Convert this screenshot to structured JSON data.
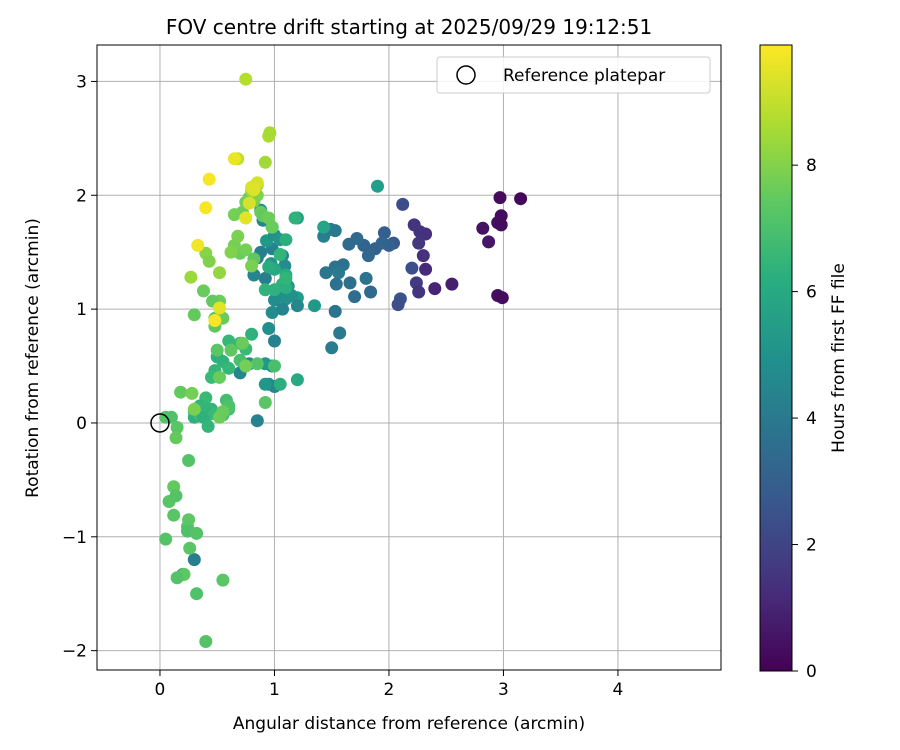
{
  "chart_data": {
    "type": "scatter",
    "title": "FOV centre drift starting at 2025/09/29 19:12:51",
    "xlabel": "Angular distance from reference (arcmin)",
    "ylabel": "Rotation from reference (arcmin)",
    "xlim": [
      -0.55,
      4.9
    ],
    "ylim": [
      -2.17,
      3.32
    ],
    "xticks": [
      0,
      1,
      2,
      3,
      4
    ],
    "yticks": [
      -2,
      -1,
      0,
      1,
      2,
      3
    ],
    "xtick_labels": [
      "0",
      "1",
      "2",
      "3",
      "4"
    ],
    "ytick_labels": [
      "−2",
      "−1",
      "0",
      "1",
      "2",
      "3"
    ],
    "grid": true,
    "legend": {
      "position": "top-right",
      "label": "Reference platepar",
      "marker": "open-circle"
    },
    "reference_point": {
      "x": 0,
      "y": 0
    },
    "colorbar": {
      "label": "Hours from first FF file",
      "colormap": "viridis",
      "range": [
        0,
        9.9
      ],
      "ticks": [
        0,
        2,
        4,
        6,
        8
      ],
      "tick_labels": [
        "0",
        "2",
        "4",
        "6",
        "8"
      ]
    },
    "points": [
      [
        2.97,
        1.98,
        0.3
      ],
      [
        3.15,
        1.97,
        0.2
      ],
      [
        2.98,
        1.82,
        0.3
      ],
      [
        2.95,
        1.76,
        0.4
      ],
      [
        2.98,
        1.74,
        0.3
      ],
      [
        2.82,
        1.71,
        0.5
      ],
      [
        2.87,
        1.59,
        0.6
      ],
      [
        2.95,
        1.12,
        0.4
      ],
      [
        2.99,
        1.1,
        0.3
      ],
      [
        2.55,
        1.22,
        0.8
      ],
      [
        2.4,
        1.18,
        1.0
      ],
      [
        2.22,
        1.74,
        1.5
      ],
      [
        2.27,
        1.68,
        1.5
      ],
      [
        2.32,
        1.66,
        1.4
      ],
      [
        2.26,
        1.58,
        1.6
      ],
      [
        2.3,
        1.47,
        1.4
      ],
      [
        2.32,
        1.35,
        1.2
      ],
      [
        2.24,
        1.23,
        1.7
      ],
      [
        2.26,
        1.15,
        1.5
      ],
      [
        2.12,
        1.92,
        2.3
      ],
      [
        2.2,
        1.36,
        2.4
      ],
      [
        2.1,
        1.09,
        2.6
      ],
      [
        2.08,
        1.04,
        2.4
      ],
      [
        1.96,
        1.67,
        3.0
      ],
      [
        2.04,
        1.58,
        2.8
      ],
      [
        2.0,
        1.56,
        3.0
      ],
      [
        1.94,
        1.58,
        3.2
      ],
      [
        1.88,
        1.53,
        3.1
      ],
      [
        1.82,
        1.47,
        3.3
      ],
      [
        1.78,
        1.56,
        3.2
      ],
      [
        1.72,
        1.62,
        3.4
      ],
      [
        1.65,
        1.57,
        3.4
      ],
      [
        1.66,
        1.23,
        3.6
      ],
      [
        1.7,
        1.11,
        3.5
      ],
      [
        1.84,
        1.15,
        3.4
      ],
      [
        1.8,
        1.27,
        3.8
      ],
      [
        1.53,
        1.37,
        3.8
      ],
      [
        1.6,
        1.39,
        3.7
      ],
      [
        1.56,
        1.32,
        4.0
      ],
      [
        1.45,
        1.32,
        3.9
      ],
      [
        1.54,
        1.22,
        3.7
      ],
      [
        1.53,
        0.98,
        3.8
      ],
      [
        1.57,
        0.79,
        4.0
      ],
      [
        1.5,
        0.66,
        4.1
      ],
      [
        1.43,
        1.64,
        4.2
      ],
      [
        1.49,
        1.7,
        4.1
      ],
      [
        1.53,
        1.69,
        4.0
      ],
      [
        1.9,
        2.08,
        5.5
      ],
      [
        1.43,
        1.72,
        5.8
      ],
      [
        1.35,
        1.03,
        5.3
      ],
      [
        1.2,
        1.1,
        5.5
      ],
      [
        1.1,
        1.09,
        5.0
      ],
      [
        1.08,
        1.14,
        4.9
      ],
      [
        1.12,
        1.2,
        5.2
      ],
      [
        1.15,
        1.12,
        5.0
      ],
      [
        1.0,
        1.08,
        4.8
      ],
      [
        0.98,
        0.97,
        4.8
      ],
      [
        1.2,
        1.03,
        4.6
      ],
      [
        1.07,
        1.0,
        4.5
      ],
      [
        1.0,
        0.72,
        4.3
      ],
      [
        0.98,
        0.5,
        4.4
      ],
      [
        0.95,
        0.34,
        4.7
      ],
      [
        1.0,
        0.32,
        4.6
      ],
      [
        0.92,
        0.34,
        5.2
      ],
      [
        0.85,
        0.02,
        4.4
      ],
      [
        0.78,
        0.52,
        4.8
      ],
      [
        0.7,
        0.44,
        4.6
      ],
      [
        0.95,
        0.83,
        4.9
      ],
      [
        0.92,
        0.52,
        5.3
      ],
      [
        0.92,
        1.27,
        4.2
      ],
      [
        0.85,
        1.45,
        4.0
      ],
      [
        0.88,
        1.5,
        4.3
      ],
      [
        0.98,
        1.53,
        4.4
      ],
      [
        1.07,
        1.47,
        4.5
      ],
      [
        1.09,
        1.38,
        4.8
      ],
      [
        0.82,
        1.3,
        4.5
      ],
      [
        0.97,
        1.4,
        5.2
      ],
      [
        0.93,
        1.6,
        5.3
      ],
      [
        0.9,
        1.78,
        4.6
      ],
      [
        0.88,
        1.87,
        4.8
      ],
      [
        1.0,
        1.65,
        5.0
      ],
      [
        1.05,
        1.61,
        5.1
      ],
      [
        0.98,
        1.72,
        5.3
      ],
      [
        1.2,
        1.8,
        5.5
      ],
      [
        1.18,
        1.8,
        6.4
      ],
      [
        1.1,
        1.61,
        6.2
      ],
      [
        1.05,
        1.48,
        6.5
      ],
      [
        1.1,
        1.3,
        6.1
      ],
      [
        1.07,
        1.22,
        6.3
      ],
      [
        1.1,
        1.19,
        6.2
      ],
      [
        1.0,
        1.17,
        6.3
      ],
      [
        0.92,
        1.17,
        6.4
      ],
      [
        1.0,
        1.35,
        6.0
      ],
      [
        0.95,
        1.37,
        6.1
      ],
      [
        1.1,
        1.27,
        6.5
      ],
      [
        1.2,
        0.38,
        6.0
      ],
      [
        1.05,
        0.34,
        6.2
      ],
      [
        0.8,
        0.78,
        6.3
      ],
      [
        0.7,
        0.7,
        6.5
      ],
      [
        0.6,
        0.72,
        6.6
      ],
      [
        0.55,
        0.54,
        6.4
      ],
      [
        0.6,
        0.48,
        6.6
      ],
      [
        0.5,
        0.58,
        6.3
      ],
      [
        0.48,
        0.46,
        6.5
      ],
      [
        0.45,
        0.4,
        6.7
      ],
      [
        0.4,
        0.22,
        6.7
      ],
      [
        0.35,
        0.15,
        6.5
      ],
      [
        0.3,
        0.1,
        6.6
      ],
      [
        0.3,
        0.05,
        6.3
      ],
      [
        0.35,
        0.07,
        6.8
      ],
      [
        0.4,
        0.05,
        6.7
      ],
      [
        0.42,
        0.12,
        6.5
      ],
      [
        0.38,
        0.05,
        6.3
      ],
      [
        0.42,
        -0.03,
        6.5
      ],
      [
        0.45,
        0.12,
        6.5
      ],
      [
        0.48,
        0.08,
        6.7
      ],
      [
        0.55,
        0.07,
        6.9
      ],
      [
        0.6,
        0.12,
        7.0
      ],
      [
        0.58,
        0.2,
        6.9
      ],
      [
        0.6,
        0.15,
        7.1
      ],
      [
        0.7,
        0.55,
        7.0
      ],
      [
        0.75,
        0.65,
        6.7
      ],
      [
        0.92,
        0.18,
        7.3
      ],
      [
        1.0,
        0.5,
        7.0
      ],
      [
        0.85,
        0.52,
        7.2
      ],
      [
        0.3,
        -1.2,
        4.2
      ],
      [
        0.2,
        -1.33,
        4.5
      ],
      [
        0.05,
        0.05,
        7.2
      ],
      [
        0.1,
        0.05,
        7.1
      ],
      [
        0.18,
        0.27,
        7.5
      ],
      [
        0.15,
        -0.04,
        7.3
      ],
      [
        0.14,
        -0.13,
        7.5
      ],
      [
        0.25,
        -0.33,
        7.2
      ],
      [
        0.08,
        -0.69,
        7.3
      ],
      [
        0.12,
        -0.56,
        7.5
      ],
      [
        0.14,
        -0.64,
        7.2
      ],
      [
        0.12,
        -0.81,
        7.3
      ],
      [
        0.25,
        -0.85,
        7.4
      ],
      [
        0.24,
        -0.91,
        7.3
      ],
      [
        0.24,
        -0.95,
        7.1
      ],
      [
        0.32,
        -0.97,
        7.2
      ],
      [
        0.26,
        -1.1,
        7.3
      ],
      [
        0.21,
        -1.33,
        7.4
      ],
      [
        0.15,
        -1.36,
        7.2
      ],
      [
        0.32,
        -1.5,
        7.1
      ],
      [
        0.55,
        -1.38,
        7.3
      ],
      [
        0.4,
        -1.92,
        7.2
      ],
      [
        0.05,
        -1.02,
        7.2
      ],
      [
        0.28,
        0.26,
        7.8
      ],
      [
        0.3,
        0.12,
        7.9
      ],
      [
        0.52,
        0.05,
        7.7
      ],
      [
        0.55,
        0.1,
        7.6
      ],
      [
        0.3,
        0.95,
        7.5
      ],
      [
        0.48,
        0.92,
        7.3
      ],
      [
        0.55,
        0.92,
        7.6
      ],
      [
        0.48,
        0.85,
        7.4
      ],
      [
        0.52,
        1.07,
        7.7
      ],
      [
        0.46,
        1.07,
        7.5
      ],
      [
        0.38,
        1.16,
        7.6
      ],
      [
        0.5,
        0.64,
        7.3
      ],
      [
        0.52,
        0.4,
        7.6
      ],
      [
        0.62,
        0.64,
        7.4
      ],
      [
        0.72,
        0.7,
        7.6
      ],
      [
        0.75,
        0.5,
        7.8
      ],
      [
        0.7,
        1.49,
        7.6
      ],
      [
        0.75,
        1.52,
        7.8
      ],
      [
        0.82,
        1.44,
        7.4
      ],
      [
        0.8,
        1.38,
        7.9
      ],
      [
        0.65,
        1.56,
        7.8
      ],
      [
        0.62,
        1.5,
        8.0
      ],
      [
        0.68,
        1.64,
        7.9
      ],
      [
        0.72,
        1.85,
        7.7
      ],
      [
        0.78,
        1.98,
        7.6
      ],
      [
        0.75,
        1.94,
        7.8
      ],
      [
        0.82,
        1.95,
        7.9
      ],
      [
        0.85,
        2.0,
        8.0
      ],
      [
        0.88,
        1.85,
        7.6
      ],
      [
        0.9,
        1.82,
        7.5
      ],
      [
        0.95,
        1.8,
        7.7
      ],
      [
        0.98,
        1.72,
        7.6
      ],
      [
        0.65,
        1.83,
        7.8
      ],
      [
        0.52,
        1.32,
        8.3
      ],
      [
        0.4,
        1.49,
        8.1
      ],
      [
        0.43,
        1.42,
        8.0
      ],
      [
        0.27,
        1.28,
        8.4
      ],
      [
        0.8,
        2.04,
        8.5
      ],
      [
        0.85,
        2.09,
        8.4
      ],
      [
        0.92,
        2.29,
        8.5
      ],
      [
        0.95,
        2.52,
        8.7
      ],
      [
        0.96,
        2.55,
        8.6
      ],
      [
        0.75,
        3.02,
        8.8
      ],
      [
        0.68,
        2.32,
        9.0
      ],
      [
        0.43,
        2.14,
        9.8
      ],
      [
        0.4,
        1.89,
        9.8
      ],
      [
        0.33,
        1.56,
        9.7
      ],
      [
        0.48,
        0.9,
        9.8
      ],
      [
        0.52,
        1.01,
        9.5
      ],
      [
        0.65,
        2.32,
        9.6
      ],
      [
        0.8,
        2.07,
        9.4
      ],
      [
        0.75,
        1.8,
        9.5
      ],
      [
        0.85,
        2.11,
        9.3
      ],
      [
        0.82,
        2.05,
        9.4
      ],
      [
        0.78,
        1.93,
        9.3
      ]
    ]
  }
}
